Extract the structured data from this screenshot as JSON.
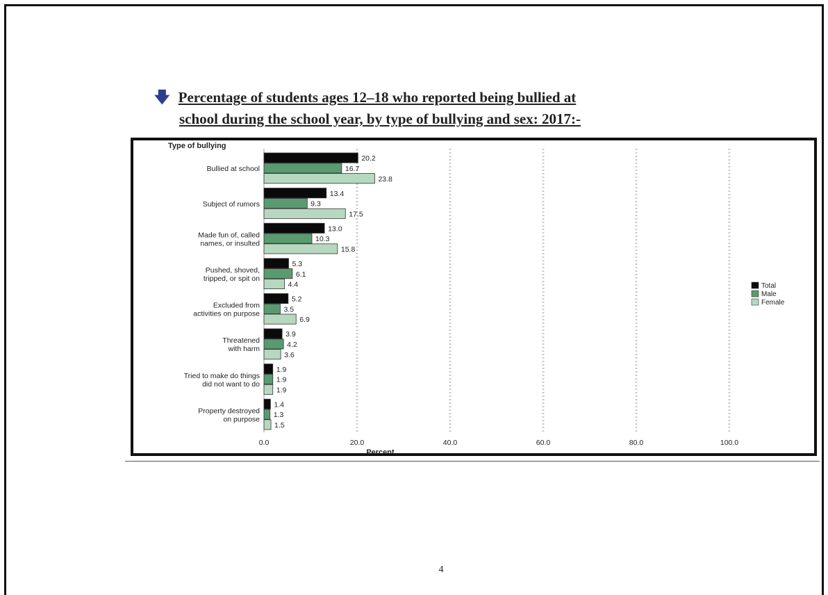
{
  "heading": {
    "icon": "down-arrow-bullet-icon",
    "line1": "Percentage of students ages 12–18 who reported being bullied at",
    "line2": "school during the school year, by type of bullying and sex: 2017:-"
  },
  "page_number": "4",
  "colors": {
    "total": "#0a0a0a",
    "male": "#5a9a70",
    "female": "#b6d8bf",
    "frame": "#111111",
    "grid": "#cccccc"
  },
  "chart_data": {
    "type": "bar",
    "orientation": "horizontal",
    "categories": [
      [
        "Bullied at school"
      ],
      [
        "Subject of rumors"
      ],
      [
        "Made fun of, called",
        "names, or insulted"
      ],
      [
        "Pushed, shoved,",
        "tripped, or spit on"
      ],
      [
        "Excluded from",
        "activities on purpose"
      ],
      [
        "Threatened",
        "with harm"
      ],
      [
        "Tried to make do things",
        "did not want to do"
      ],
      [
        "Property destroyed",
        "on purpose"
      ]
    ],
    "series": [
      {
        "name": "Total",
        "values": [
          20.2,
          13.4,
          13.0,
          5.3,
          5.2,
          3.9,
          1.9,
          1.4
        ]
      },
      {
        "name": "Male",
        "values": [
          16.7,
          9.3,
          10.3,
          6.1,
          3.5,
          4.2,
          1.9,
          1.3
        ]
      },
      {
        "name": "Female",
        "values": [
          23.8,
          17.5,
          15.8,
          4.4,
          6.9,
          3.6,
          1.9,
          1.5
        ]
      }
    ],
    "value_labels": [
      [
        "20.2",
        "13.4",
        "13.0",
        "5.3",
        "5.2",
        "3.9",
        "1.9",
        "1.4"
      ],
      [
        "16.7",
        "9.3",
        "10.3",
        "6.1",
        "3.5",
        "4.2",
        "1.9",
        "1.3"
      ],
      [
        "23.8",
        "17.5",
        "15.8",
        "4.4",
        "6.9",
        "3.6",
        "1.9",
        "1.5"
      ]
    ],
    "xlabel": "Percent",
    "ylabel": "Type of bullying",
    "xlim": [
      0,
      100
    ],
    "xticks": [
      0,
      20,
      40,
      60,
      80,
      100
    ],
    "xtick_labels": [
      "0.0",
      "20.0",
      "40.0",
      "60.0",
      "80.0",
      "100.0"
    ],
    "grid": "vertical dashed",
    "legend_position": "right"
  }
}
